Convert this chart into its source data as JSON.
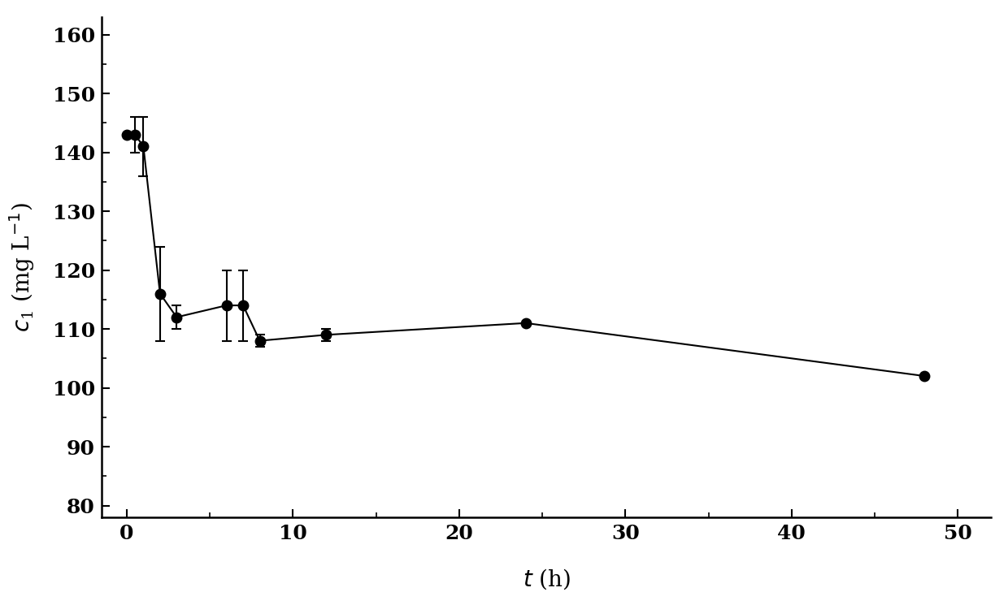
{
  "x": [
    0,
    0.5,
    1,
    2,
    3,
    6,
    7,
    8,
    12,
    24,
    48
  ],
  "y": [
    143,
    143,
    141,
    116,
    112,
    114,
    114,
    108,
    109,
    111,
    102
  ],
  "yerr": [
    0,
    3,
    5,
    8,
    2,
    6,
    6,
    1,
    1,
    0,
    0
  ],
  "xlabel": "t (h)",
  "ylabel_italic": "c",
  "ylabel_sub": "1",
  "ylabel_normal": " (mg L",
  "ylabel_sup": "−1",
  "xlim": [
    -1.5,
    52
  ],
  "ylim": [
    78,
    163
  ],
  "yticks": [
    80,
    90,
    100,
    110,
    120,
    130,
    140,
    150,
    160
  ],
  "xticks": [
    0,
    10,
    20,
    30,
    40,
    50
  ],
  "marker": "o",
  "marker_size": 9,
  "line_color": "#000000",
  "marker_color": "#000000",
  "ecolor": "#000000",
  "capsize": 4,
  "linewidth": 1.5,
  "background_color": "#ffffff",
  "font_family": "DejaVu Serif",
  "tick_labelsize": 18,
  "label_fontsize": 20
}
